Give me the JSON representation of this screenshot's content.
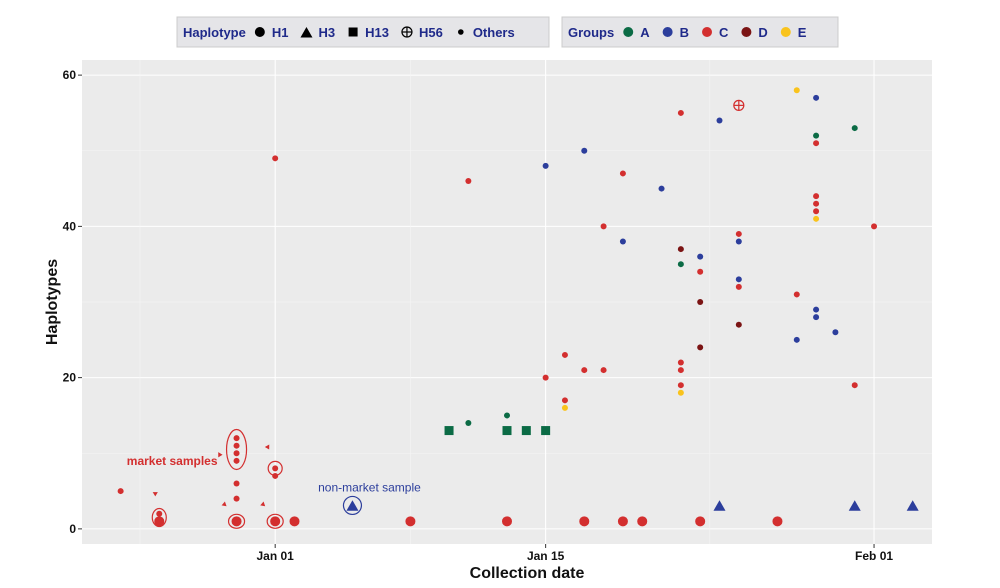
{
  "chart_data": {
    "type": "scatter",
    "title": "",
    "xlabel": "Collection date",
    "ylabel": "Haplotypes",
    "x_axis": {
      "kind": "date",
      "range": [
        "2019-12-22",
        "2020-02-04"
      ],
      "ticks": [
        {
          "value": "2020-01-01",
          "label": "Jan 01"
        },
        {
          "value": "2020-01-15",
          "label": "Jan 15"
        },
        {
          "value": "2020-02-01",
          "label": "Feb 01"
        }
      ]
    },
    "y_axis": {
      "range": [
        -2,
        62
      ],
      "ticks": [
        {
          "value": 0,
          "label": "0"
        },
        {
          "value": 20,
          "label": "20"
        },
        {
          "value": 40,
          "label": "40"
        },
        {
          "value": 60,
          "label": "60"
        }
      ]
    },
    "grid": true,
    "legend": {
      "placement": "top",
      "haplotype": {
        "title": "Haplotype",
        "entries": [
          {
            "label": "H1",
            "shape": "circle"
          },
          {
            "label": "H3",
            "shape": "triangle"
          },
          {
            "label": "H13",
            "shape": "square"
          },
          {
            "label": "H56",
            "shape": "circle-cross"
          },
          {
            "label": "Others",
            "shape": "small-circle"
          }
        ]
      },
      "groups": {
        "title": "Groups",
        "entries": [
          {
            "label": "A",
            "color": "#0b6b45"
          },
          {
            "label": "B",
            "color": "#2c3e9c"
          },
          {
            "label": "C",
            "color": "#d32f2f"
          },
          {
            "label": "D",
            "color": "#7b1414"
          },
          {
            "label": "E",
            "color": "#f9c31c"
          }
        ]
      }
    },
    "colors": {
      "A": "#0b6b45",
      "B": "#2c3e9c",
      "C": "#d32f2f",
      "D": "#7b1414",
      "E": "#f9c31c"
    },
    "annotations": [
      {
        "text": "market samples"
      },
      {
        "text": "non-market sample"
      }
    ],
    "points": [
      {
        "x": "2019-12-24",
        "y": 5,
        "shape": "small-circle",
        "group": "C"
      },
      {
        "x": "2019-12-26",
        "y": 1,
        "shape": "circle",
        "group": "C"
      },
      {
        "x": "2019-12-26",
        "y": 2,
        "shape": "small-circle",
        "group": "C"
      },
      {
        "x": "2019-12-30",
        "y": 1,
        "shape": "circle",
        "group": "C"
      },
      {
        "x": "2019-12-30",
        "y": 4,
        "shape": "small-circle",
        "group": "C"
      },
      {
        "x": "2019-12-30",
        "y": 6,
        "shape": "small-circle",
        "group": "C"
      },
      {
        "x": "2019-12-30",
        "y": 9,
        "shape": "small-circle",
        "group": "C"
      },
      {
        "x": "2019-12-30",
        "y": 10,
        "shape": "small-circle",
        "group": "C"
      },
      {
        "x": "2019-12-30",
        "y": 11,
        "shape": "small-circle",
        "group": "C"
      },
      {
        "x": "2019-12-30",
        "y": 12,
        "shape": "small-circle",
        "group": "C"
      },
      {
        "x": "2020-01-01",
        "y": 1,
        "shape": "circle",
        "group": "C"
      },
      {
        "x": "2020-01-01",
        "y": 7,
        "shape": "small-circle",
        "group": "C"
      },
      {
        "x": "2020-01-01",
        "y": 8,
        "shape": "small-circle",
        "group": "C"
      },
      {
        "x": "2020-01-01",
        "y": 49,
        "shape": "small-circle",
        "group": "C"
      },
      {
        "x": "2020-01-02",
        "y": 1,
        "shape": "circle",
        "group": "C"
      },
      {
        "x": "2020-01-05",
        "y": 3,
        "shape": "triangle",
        "group": "B"
      },
      {
        "x": "2020-01-08",
        "y": 1,
        "shape": "circle",
        "group": "C"
      },
      {
        "x": "2020-01-10",
        "y": 13,
        "shape": "square",
        "group": "A"
      },
      {
        "x": "2020-01-11",
        "y": 14,
        "shape": "small-circle",
        "group": "A"
      },
      {
        "x": "2020-01-11",
        "y": 46,
        "shape": "small-circle",
        "group": "C"
      },
      {
        "x": "2020-01-13",
        "y": 1,
        "shape": "circle",
        "group": "C"
      },
      {
        "x": "2020-01-13",
        "y": 13,
        "shape": "square",
        "group": "A"
      },
      {
        "x": "2020-01-13",
        "y": 15,
        "shape": "small-circle",
        "group": "A"
      },
      {
        "x": "2020-01-14",
        "y": 13,
        "shape": "square",
        "group": "A"
      },
      {
        "x": "2020-01-15",
        "y": 13,
        "shape": "square",
        "group": "A"
      },
      {
        "x": "2020-01-15",
        "y": 20,
        "shape": "small-circle",
        "group": "C"
      },
      {
        "x": "2020-01-15",
        "y": 48,
        "shape": "small-circle",
        "group": "B"
      },
      {
        "x": "2020-01-16",
        "y": 16,
        "shape": "small-circle",
        "group": "E"
      },
      {
        "x": "2020-01-16",
        "y": 17,
        "shape": "small-circle",
        "group": "C"
      },
      {
        "x": "2020-01-16",
        "y": 23,
        "shape": "small-circle",
        "group": "C"
      },
      {
        "x": "2020-01-17",
        "y": 1,
        "shape": "circle",
        "group": "C"
      },
      {
        "x": "2020-01-17",
        "y": 21,
        "shape": "small-circle",
        "group": "C"
      },
      {
        "x": "2020-01-17",
        "y": 50,
        "shape": "small-circle",
        "group": "B"
      },
      {
        "x": "2020-01-18",
        "y": 21,
        "shape": "small-circle",
        "group": "C"
      },
      {
        "x": "2020-01-18",
        "y": 40,
        "shape": "small-circle",
        "group": "C"
      },
      {
        "x": "2020-01-19",
        "y": 1,
        "shape": "circle",
        "group": "C"
      },
      {
        "x": "2020-01-19",
        "y": 38,
        "shape": "small-circle",
        "group": "B"
      },
      {
        "x": "2020-01-19",
        "y": 47,
        "shape": "small-circle",
        "group": "C"
      },
      {
        "x": "2020-01-20",
        "y": 1,
        "shape": "circle",
        "group": "C"
      },
      {
        "x": "2020-01-21",
        "y": 45,
        "shape": "small-circle",
        "group": "B"
      },
      {
        "x": "2020-01-22",
        "y": 18,
        "shape": "small-circle",
        "group": "E"
      },
      {
        "x": "2020-01-22",
        "y": 19,
        "shape": "small-circle",
        "group": "C"
      },
      {
        "x": "2020-01-22",
        "y": 21,
        "shape": "small-circle",
        "group": "C"
      },
      {
        "x": "2020-01-22",
        "y": 22,
        "shape": "small-circle",
        "group": "C"
      },
      {
        "x": "2020-01-22",
        "y": 35,
        "shape": "small-circle",
        "group": "A"
      },
      {
        "x": "2020-01-22",
        "y": 37,
        "shape": "small-circle",
        "group": "D"
      },
      {
        "x": "2020-01-22",
        "y": 55,
        "shape": "small-circle",
        "group": "C"
      },
      {
        "x": "2020-01-23",
        "y": 1,
        "shape": "circle",
        "group": "C"
      },
      {
        "x": "2020-01-23",
        "y": 24,
        "shape": "small-circle",
        "group": "D"
      },
      {
        "x": "2020-01-23",
        "y": 30,
        "shape": "small-circle",
        "group": "D"
      },
      {
        "x": "2020-01-23",
        "y": 34,
        "shape": "small-circle",
        "group": "C"
      },
      {
        "x": "2020-01-23",
        "y": 36,
        "shape": "small-circle",
        "group": "B"
      },
      {
        "x": "2020-01-24",
        "y": 3,
        "shape": "triangle",
        "group": "B"
      },
      {
        "x": "2020-01-24",
        "y": 54,
        "shape": "small-circle",
        "group": "B"
      },
      {
        "x": "2020-01-25",
        "y": 27,
        "shape": "small-circle",
        "group": "D"
      },
      {
        "x": "2020-01-25",
        "y": 32,
        "shape": "small-circle",
        "group": "C"
      },
      {
        "x": "2020-01-25",
        "y": 33,
        "shape": "small-circle",
        "group": "B"
      },
      {
        "x": "2020-01-25",
        "y": 38,
        "shape": "small-circle",
        "group": "B"
      },
      {
        "x": "2020-01-25",
        "y": 39,
        "shape": "small-circle",
        "group": "C"
      },
      {
        "x": "2020-01-25",
        "y": 56,
        "shape": "circle-cross",
        "group": "C"
      },
      {
        "x": "2020-01-27",
        "y": 1,
        "shape": "circle",
        "group": "C"
      },
      {
        "x": "2020-01-28",
        "y": 25,
        "shape": "small-circle",
        "group": "B"
      },
      {
        "x": "2020-01-28",
        "y": 31,
        "shape": "small-circle",
        "group": "C"
      },
      {
        "x": "2020-01-28",
        "y": 58,
        "shape": "small-circle",
        "group": "E"
      },
      {
        "x": "2020-01-29",
        "y": 28,
        "shape": "small-circle",
        "group": "B"
      },
      {
        "x": "2020-01-29",
        "y": 29,
        "shape": "small-circle",
        "group": "B"
      },
      {
        "x": "2020-01-29",
        "y": 41,
        "shape": "small-circle",
        "group": "E"
      },
      {
        "x": "2020-01-29",
        "y": 42,
        "shape": "small-circle",
        "group": "C"
      },
      {
        "x": "2020-01-29",
        "y": 43,
        "shape": "small-circle",
        "group": "C"
      },
      {
        "x": "2020-01-29",
        "y": 44,
        "shape": "small-circle",
        "group": "C"
      },
      {
        "x": "2020-01-29",
        "y": 51,
        "shape": "small-circle",
        "group": "C"
      },
      {
        "x": "2020-01-29",
        "y": 52,
        "shape": "small-circle",
        "group": "A"
      },
      {
        "x": "2020-01-29",
        "y": 57,
        "shape": "small-circle",
        "group": "B"
      },
      {
        "x": "2020-01-30",
        "y": 26,
        "shape": "small-circle",
        "group": "B"
      },
      {
        "x": "2020-01-31",
        "y": 3,
        "shape": "triangle",
        "group": "B"
      },
      {
        "x": "2020-01-31",
        "y": 19,
        "shape": "small-circle",
        "group": "C"
      },
      {
        "x": "2020-01-31",
        "y": 53,
        "shape": "small-circle",
        "group": "A"
      },
      {
        "x": "2020-02-01",
        "y": 40,
        "shape": "small-circle",
        "group": "C"
      },
      {
        "x": "2020-02-03",
        "y": 3,
        "shape": "triangle",
        "group": "B"
      }
    ]
  }
}
